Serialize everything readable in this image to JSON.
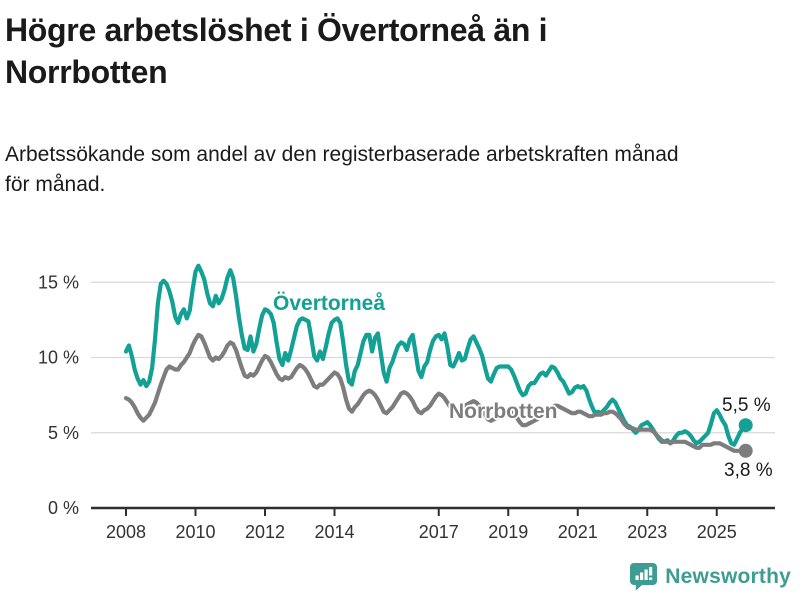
{
  "header": {
    "title_lines": [
      "Högre arbetslöshet i Övertorneå än i",
      "Norrbotten"
    ],
    "subtitle_lines": [
      "Arbetssökande som andel av den registerbaserade arbetskraften månad",
      "för månad."
    ]
  },
  "footer": {
    "brand": "Newsworthy",
    "brand_color": "#3E9C92",
    "icon": "newsworthy-speech-bubble-barchart-icon"
  },
  "chart_data": {
    "type": "line",
    "title": "Högre arbetslöshet i Övertorneå än i Norrbotten",
    "subtitle": "Arbetssökande som andel av den registerbaserade arbetskraften månad för månad.",
    "frequency": "monthly",
    "x_start": "2008-01",
    "x_end": "2025-11",
    "x_ticks": [
      2008,
      2010,
      2012,
      2014,
      2017,
      2019,
      2021,
      2023,
      2025
    ],
    "x_tick_labels": [
      "2008",
      "2010",
      "2012",
      "2014",
      "2017",
      "2019",
      "2021",
      "2023",
      "2025"
    ],
    "y_ticks": [
      0,
      5,
      10,
      15
    ],
    "y_tick_labels": [
      "0 %",
      "5 %",
      "10 %",
      "15 %"
    ],
    "ylim": [
      0,
      17
    ],
    "grid": "horizontal",
    "legend_position": "inline-labels",
    "style": {
      "grid_color": "#d9d9d9",
      "axis_color": "#2e2e2e",
      "tick_label_color": "#333333",
      "background": "#ffffff"
    },
    "series": [
      {
        "name": "Övertorneå",
        "color": "#13A095",
        "end_label": "5,5 %",
        "end_value": 5.5,
        "values": [
          10.4,
          10.8,
          10.1,
          9.2,
          8.6,
          8.2,
          8.5,
          8.1,
          8.4,
          9.3,
          11.2,
          13.6,
          14.9,
          15.1,
          14.9,
          14.4,
          13.7,
          12.7,
          12.3,
          12.9,
          13.2,
          12.6,
          13.1,
          14.5,
          15.7,
          16.1,
          15.7,
          15.2,
          14.3,
          13.6,
          13.4,
          14.1,
          13.6,
          13.9,
          14.5,
          15.3,
          15.8,
          15.3,
          14.1,
          12.7,
          11.5,
          10.6,
          10.5,
          11.4,
          10.4,
          10.9,
          11.9,
          12.8,
          13.2,
          13.1,
          12.9,
          12.3,
          11.0,
          9.9,
          9.5,
          10.3,
          9.8,
          10.5,
          11.3,
          12.1,
          12.5,
          12.6,
          12.5,
          12.4,
          11.3,
          10.1,
          9.8,
          10.4,
          9.9,
          10.7,
          11.6,
          12.3,
          12.5,
          12.6,
          12.3,
          11.0,
          9.5,
          8.4,
          8.2,
          9.1,
          9.5,
          10.3,
          11.1,
          11.5,
          11.5,
          10.4,
          11.3,
          11.6,
          10.3,
          9.0,
          8.4,
          9.3,
          9.7,
          10.3,
          10.8,
          11.0,
          10.9,
          10.5,
          11.2,
          11.5,
          10.3,
          9.1,
          8.7,
          9.4,
          9.7,
          10.5,
          11.1,
          11.4,
          11.5,
          11.2,
          11.6,
          10.7,
          9.5,
          9.4,
          9.8,
          10.3,
          9.8,
          9.9,
          10.6,
          11.2,
          11.4,
          11.0,
          10.6,
          10.1,
          9.3,
          8.6,
          8.4,
          8.9,
          9.3,
          9.4,
          9.4,
          9.4,
          9.4,
          9.2,
          8.8,
          8.3,
          7.8,
          7.5,
          7.6,
          8.1,
          8.3,
          8.3,
          8.6,
          8.9,
          9.0,
          8.8,
          9.1,
          9.4,
          9.3,
          9.0,
          8.6,
          8.4,
          8.0,
          7.6,
          7.7,
          8.0,
          8.1,
          8.0,
          8.1,
          7.8,
          7.2,
          6.7,
          6.3,
          6.4,
          6.3,
          6.5,
          6.7,
          7.0,
          7.2,
          7.0,
          6.6,
          6.2,
          5.8,
          5.5,
          5.4,
          5.2,
          5.0,
          5.2,
          5.5,
          5.6,
          5.7,
          5.5,
          5.2,
          4.9,
          4.6,
          4.4,
          4.4,
          4.5,
          4.3,
          4.5,
          4.8,
          5.0,
          5.0,
          5.1,
          5.0,
          4.8,
          4.5,
          4.3,
          4.4,
          4.6,
          4.8,
          5.0,
          5.6,
          6.3,
          6.5,
          6.2,
          5.8,
          5.5,
          4.8,
          4.3,
          4.2,
          4.6,
          5.0,
          5.3,
          5.5
        ]
      },
      {
        "name": "Norrbotten",
        "color": "#7d7d7d",
        "end_label": "3,8 %",
        "end_value": 3.8,
        "values": [
          7.3,
          7.2,
          7.0,
          6.7,
          6.3,
          6.0,
          5.8,
          6.0,
          6.2,
          6.6,
          7.0,
          7.6,
          8.2,
          8.7,
          9.2,
          9.4,
          9.3,
          9.2,
          9.2,
          9.5,
          9.7,
          10.0,
          10.3,
          10.8,
          11.2,
          11.5,
          11.4,
          11.0,
          10.5,
          10.0,
          9.8,
          10.0,
          9.9,
          10.1,
          10.4,
          10.8,
          11.0,
          10.9,
          10.5,
          9.9,
          9.3,
          8.8,
          8.7,
          8.9,
          8.8,
          9.0,
          9.4,
          9.8,
          10.1,
          10.0,
          9.7,
          9.3,
          8.9,
          8.6,
          8.5,
          8.7,
          8.6,
          8.7,
          9.0,
          9.3,
          9.5,
          9.4,
          9.2,
          8.9,
          8.5,
          8.1,
          8.0,
          8.2,
          8.2,
          8.4,
          8.6,
          8.8,
          9.0,
          8.9,
          8.6,
          8.0,
          7.2,
          6.6,
          6.4,
          6.7,
          6.9,
          7.2,
          7.5,
          7.7,
          7.8,
          7.7,
          7.5,
          7.2,
          6.8,
          6.4,
          6.3,
          6.5,
          6.7,
          7.0,
          7.3,
          7.6,
          7.7,
          7.6,
          7.4,
          7.1,
          6.7,
          6.4,
          6.3,
          6.5,
          6.6,
          6.8,
          7.1,
          7.4,
          7.6,
          7.5,
          7.3,
          7.0,
          6.7,
          6.4,
          6.4,
          6.6,
          6.7,
          6.8,
          6.9,
          7.0,
          7.1,
          7.0,
          6.8,
          6.5,
          6.2,
          5.9,
          5.8,
          5.9,
          6.0,
          6.1,
          6.2,
          6.4,
          6.5,
          6.4,
          6.2,
          6.0,
          5.7,
          5.5,
          5.5,
          5.6,
          5.7,
          5.8,
          5.9,
          6.1,
          6.2,
          6.2,
          6.4,
          6.7,
          6.8,
          6.8,
          6.7,
          6.6,
          6.5,
          6.4,
          6.3,
          6.3,
          6.4,
          6.4,
          6.3,
          6.2,
          6.1,
          6.1,
          6.2,
          6.2,
          6.2,
          6.3,
          6.3,
          6.4,
          6.4,
          6.3,
          6.1,
          5.9,
          5.6,
          5.4,
          5.3,
          5.3,
          5.2,
          5.2,
          5.2,
          5.2,
          5.2,
          5.2,
          5.1,
          4.9,
          4.7,
          4.5,
          4.4,
          4.4,
          4.3,
          4.4,
          4.4,
          4.4,
          4.4,
          4.4,
          4.3,
          4.2,
          4.1,
          4.0,
          4.0,
          4.2,
          4.2,
          4.2,
          4.2,
          4.3,
          4.3,
          4.3,
          4.2,
          4.1,
          4.0,
          3.9,
          3.8,
          3.8,
          3.8,
          3.8,
          3.8
        ]
      }
    ]
  }
}
